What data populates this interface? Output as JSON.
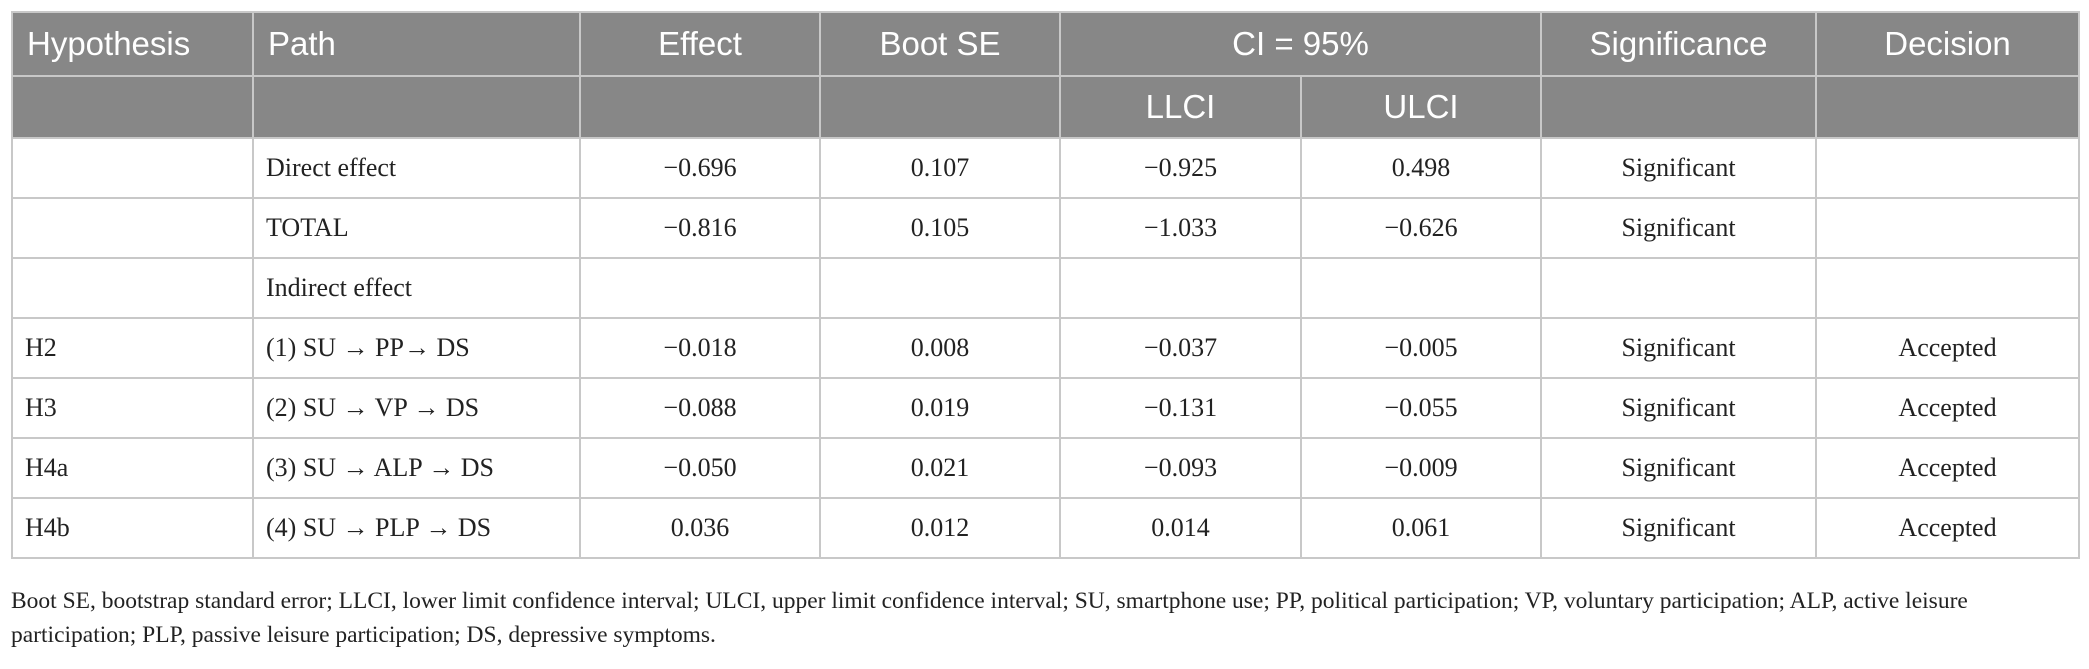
{
  "header": {
    "hypothesis": "Hypothesis",
    "path": "Path",
    "effect": "Effect",
    "boot_se": "Boot SE",
    "ci": "CI = 95%",
    "llci": "LLCI",
    "ulci": "ULCI",
    "significance": "Significance",
    "decision": "Decision"
  },
  "rows": [
    {
      "hypothesis": "",
      "path": "Direct effect",
      "effect": "−0.696",
      "boot_se": "0.107",
      "llci": "−0.925",
      "ulci": "0.498",
      "significance": "Significant",
      "decision": ""
    },
    {
      "hypothesis": "",
      "path": "TOTAL",
      "effect": "−0.816",
      "boot_se": "0.105",
      "llci": "−1.033",
      "ulci": "−0.626",
      "significance": "Significant",
      "decision": ""
    },
    {
      "hypothesis": "",
      "path": "Indirect effect",
      "effect": "",
      "boot_se": "",
      "llci": "",
      "ulci": "",
      "significance": "",
      "decision": ""
    },
    {
      "hypothesis": "H2",
      "path": "(1) SU → PP→ DS",
      "effect": "−0.018",
      "boot_se": "0.008",
      "llci": "−0.037",
      "ulci": "−0.005",
      "significance": "Significant",
      "decision": "Accepted"
    },
    {
      "hypothesis": "H3",
      "path": "(2) SU → VP → DS",
      "effect": "−0.088",
      "boot_se": "0.019",
      "llci": "−0.131",
      "ulci": "−0.055",
      "significance": "Significant",
      "decision": "Accepted"
    },
    {
      "hypothesis": "H4a",
      "path": "(3) SU → ALP → DS",
      "effect": "−0.050",
      "boot_se": "0.021",
      "llci": "−0.093",
      "ulci": "−0.009",
      "significance": "Significant",
      "decision": "Accepted"
    },
    {
      "hypothesis": "H4b",
      "path": "(4) SU → PLP → DS",
      "effect": "0.036",
      "boot_se": "0.012",
      "llci": "0.014",
      "ulci": "0.061",
      "significance": "Significant",
      "decision": "Accepted"
    }
  ],
  "footnote": "Boot SE, bootstrap standard error; LLCI, lower limit confidence interval; ULCI, upper limit confidence interval; SU, smartphone use; PP, political participation; VP, voluntary participation; ALP, active leisure participation; PLP, passive leisure participation; DS, depressive symptoms."
}
